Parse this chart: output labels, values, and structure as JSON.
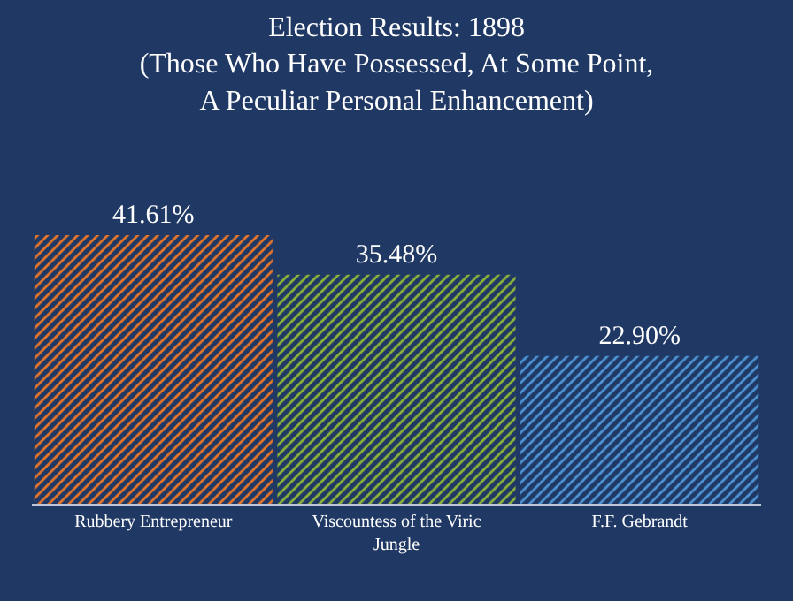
{
  "chart_data": {
    "type": "bar",
    "title": "Election Results: 1898\n(Those Who Have Possessed, At Some Point,\nA Peculiar Personal Enhancement)",
    "categories": [
      "Rubbery Entrepreneur",
      "Viscountess of the Viric Jungle",
      "F.F. Gebrandt"
    ],
    "values": [
      41.61,
      35.48,
      22.9
    ],
    "value_labels": [
      "41.61%",
      "35.48%",
      "22.90%"
    ],
    "colors": [
      "#e8762a",
      "#8cb33a",
      "#4e95d6"
    ],
    "data_labels": false
  }
}
